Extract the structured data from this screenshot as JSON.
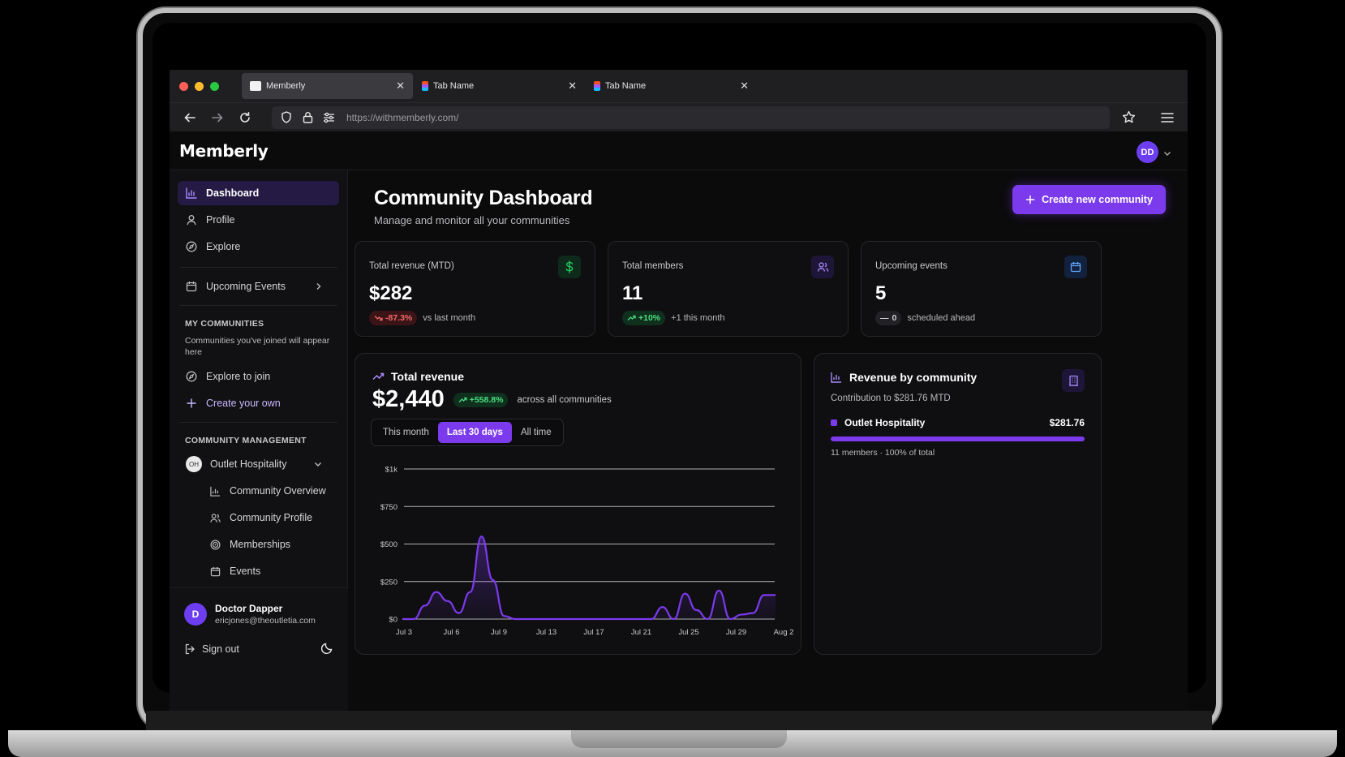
{
  "browser": {
    "tabs": [
      {
        "title": "Memberly",
        "active": true
      },
      {
        "title": "Tab Name",
        "active": false
      },
      {
        "title": "Tab Name",
        "active": false
      }
    ],
    "url": "https://withmemberly.com/"
  },
  "header": {
    "logo": "Memberly",
    "avatar_initials": "DD"
  },
  "sidebar": {
    "nav": [
      {
        "label": "Dashboard",
        "icon": "bar-chart-icon",
        "active": true
      },
      {
        "label": "Profile",
        "icon": "user-icon"
      },
      {
        "label": "Explore",
        "icon": "compass-icon"
      }
    ],
    "upcoming_events": "Upcoming Events",
    "my_communities_title": "MY COMMUNITIES",
    "my_communities_note": "Communities you've joined will appear here",
    "explore_to_join": "Explore to join",
    "create_your_own": "Create your own",
    "management_title": "COMMUNITY MANAGEMENT",
    "community_name": "Outlet Hospitality",
    "community_sub": [
      {
        "label": "Community Overview",
        "icon": "bar-chart-icon"
      },
      {
        "label": "Community Profile",
        "icon": "users-icon"
      },
      {
        "label": "Memberships",
        "icon": "target-icon"
      },
      {
        "label": "Events",
        "icon": "calendar-icon"
      }
    ],
    "user": {
      "initial": "D",
      "name": "Doctor Dapper",
      "email": "ericjones@theoutletia.com"
    },
    "sign_out": "Sign out"
  },
  "main": {
    "title": "Community Dashboard",
    "subtitle": "Manage and monitor all your communities",
    "create_button": "Create new community",
    "stats": [
      {
        "label": "Total revenue (MTD)",
        "value": "$282",
        "change": "-87.3%",
        "change_type": "negative",
        "note": "vs last month",
        "icon": "dollar-icon",
        "accent": "#22c55e"
      },
      {
        "label": "Total members",
        "value": "11",
        "change": "+10%",
        "change_type": "positive",
        "note": "+1 this month",
        "icon": "users-icon",
        "accent": "#a78bfa"
      },
      {
        "label": "Upcoming events",
        "value": "5",
        "change": "0",
        "change_type": "neutral",
        "note": "scheduled ahead",
        "icon": "calendar-icon",
        "accent": "#60a5fa"
      }
    ],
    "revenue_panel": {
      "title": "Total revenue",
      "value": "$2,440",
      "change": "+558.8%",
      "note": "across all communities",
      "periods": [
        "This month",
        "Last 30 days",
        "All time"
      ],
      "active_period": "Last 30 days"
    },
    "community_panel": {
      "title": "Revenue by community",
      "subtitle": "Contribution to $281.76 MTD",
      "items": [
        {
          "name": "Outlet Hospitality",
          "amount": "$281.76",
          "share": 1.0,
          "detail": "11 members · 100% of total"
        }
      ]
    }
  },
  "colors": {
    "accent": "#7c3aed",
    "positive": "#4ade80",
    "negative": "#f36b6b",
    "background": "#0b0b0c"
  },
  "chart_data": {
    "type": "area",
    "x_ticks": [
      "Jul 3",
      "Jul 6",
      "Jul 9",
      "Jul 13",
      "Jul 17",
      "Jul 21",
      "Jul 25",
      "Jul 29",
      "Aug 2"
    ],
    "y_ticks": [
      "$0",
      "$250",
      "$500",
      "$750",
      "$1k"
    ],
    "ylim": [
      0,
      1000
    ],
    "grid": true,
    "series": [
      {
        "values": [
          0,
          0,
          90,
          180,
          120,
          40,
          180,
          550,
          260,
          20,
          0,
          0,
          0,
          0,
          0,
          0,
          0,
          0,
          0,
          0,
          0,
          0,
          0,
          80,
          0,
          170,
          60,
          0,
          190,
          0,
          30,
          40,
          160,
          160
        ]
      }
    ]
  }
}
